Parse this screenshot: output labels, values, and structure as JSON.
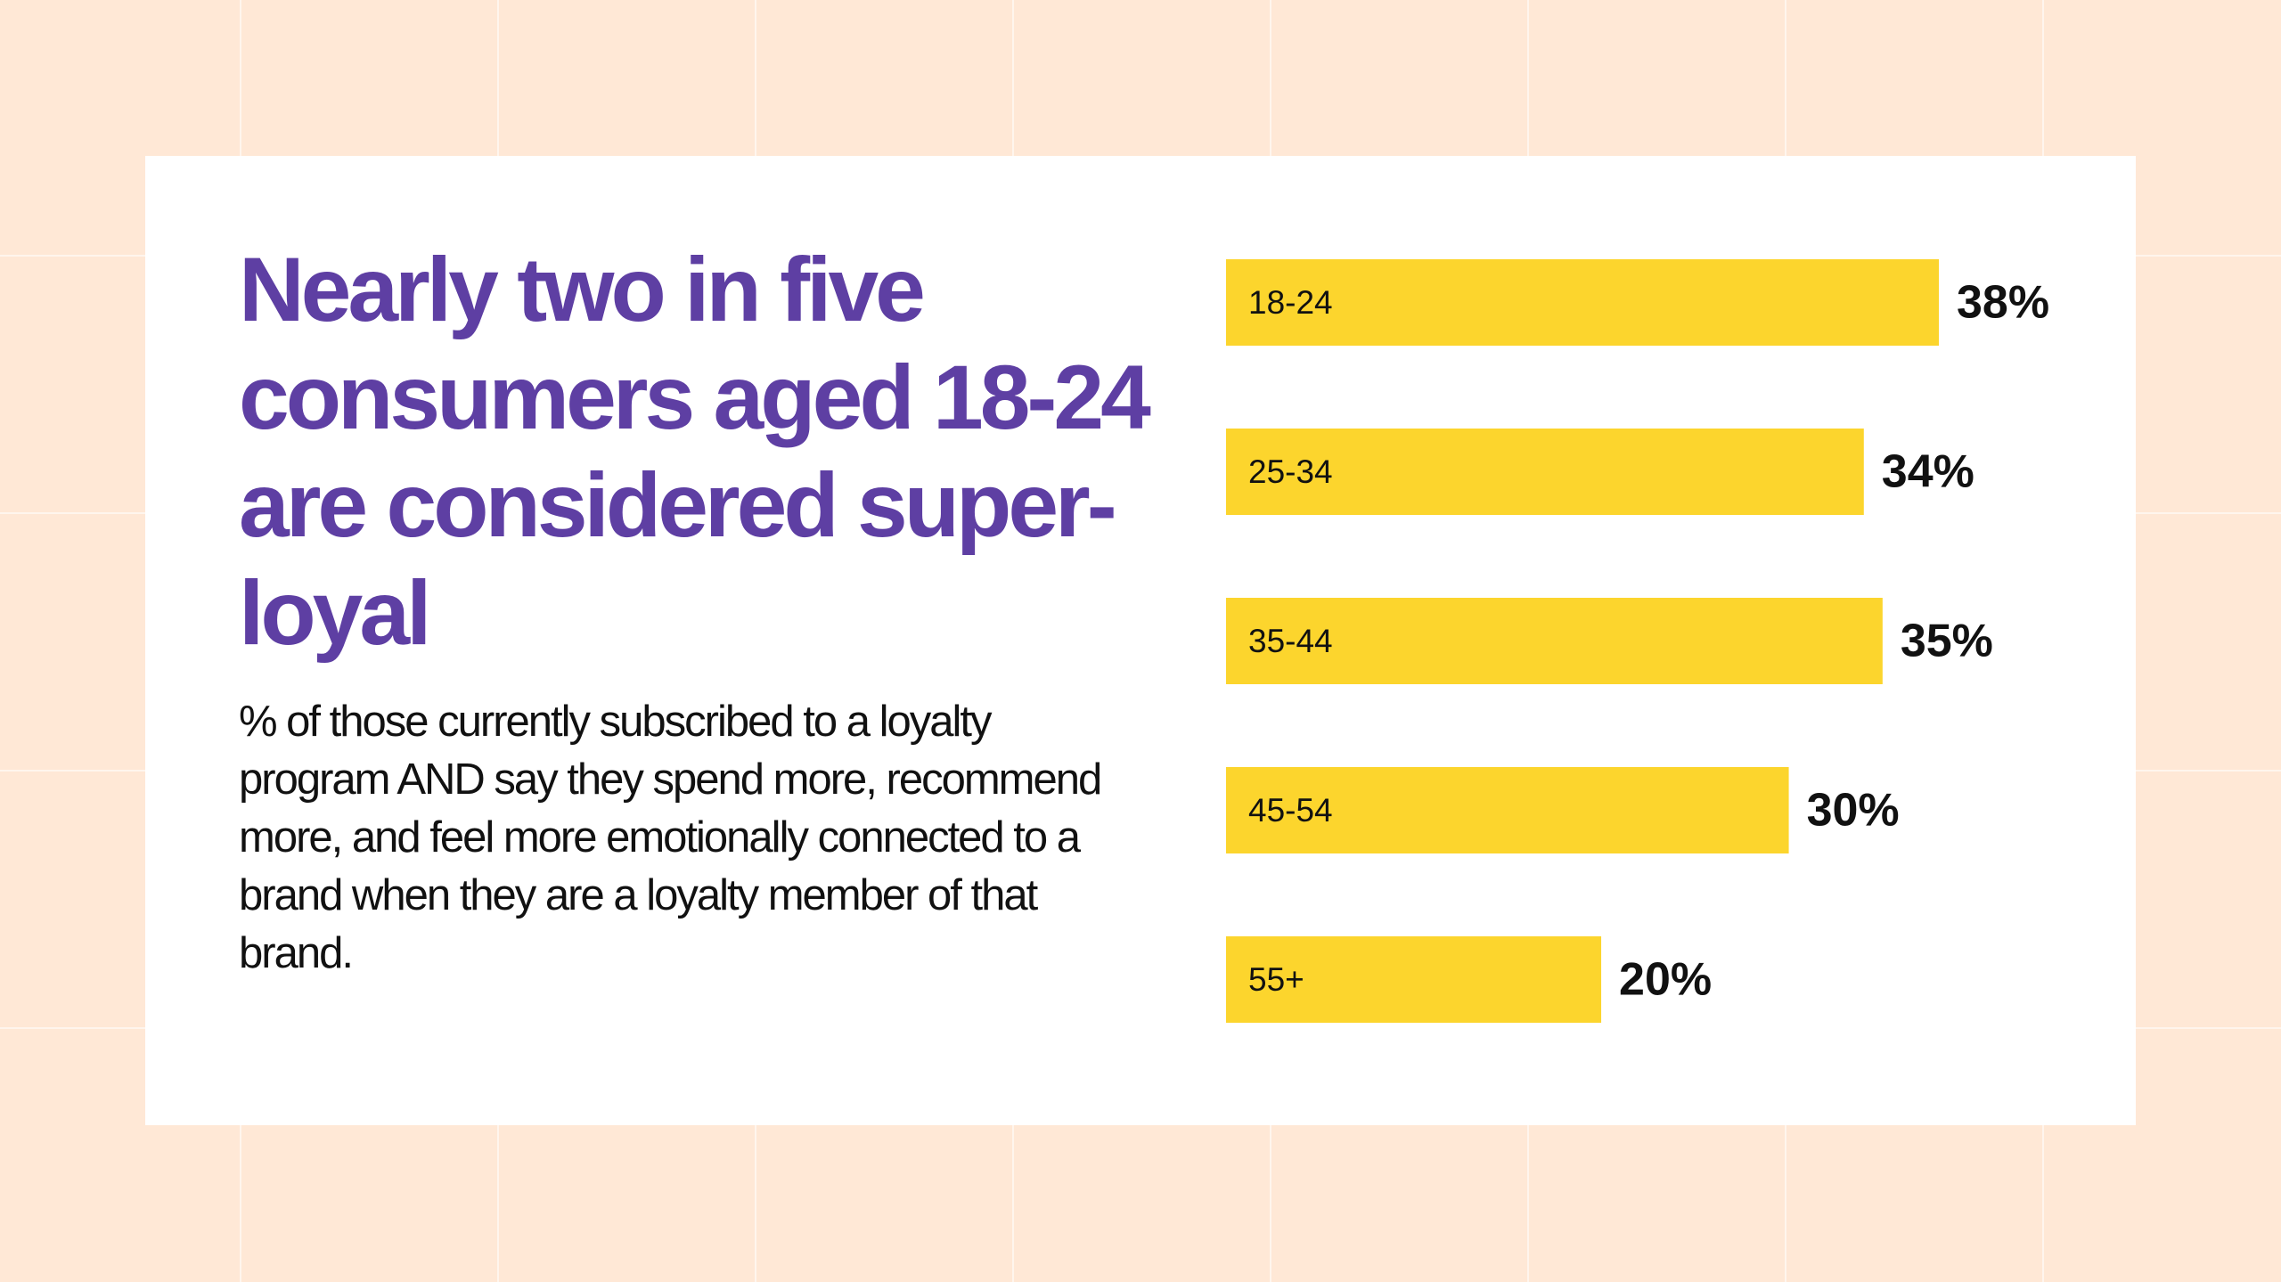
{
  "headline": "Nearly two in five consumers aged 18-24 are considered super-loyal",
  "subtitle": "% of those currently subscribed to a loyalty program AND say they spend more, recommend more, and feel more emotionally connected to a brand when they are a loyalty member of that brand.",
  "colors": {
    "background": "#FFE8D6",
    "card": "#FFFFFF",
    "headline": "#5E3FA3",
    "bar": "#FCD52D",
    "text": "#111111"
  },
  "chart_data": {
    "type": "bar",
    "orientation": "horizontal",
    "categories": [
      "18-24",
      "25-34",
      "35-44",
      "45-54",
      "55+"
    ],
    "values": [
      38,
      34,
      35,
      30,
      20
    ],
    "value_labels": [
      "38%",
      "34%",
      "35%",
      "30%",
      "20%"
    ],
    "unit": "%",
    "title": "",
    "xlabel": "",
    "ylabel": "",
    "xlim": [
      0,
      38
    ],
    "grid": false,
    "legend": "none"
  }
}
